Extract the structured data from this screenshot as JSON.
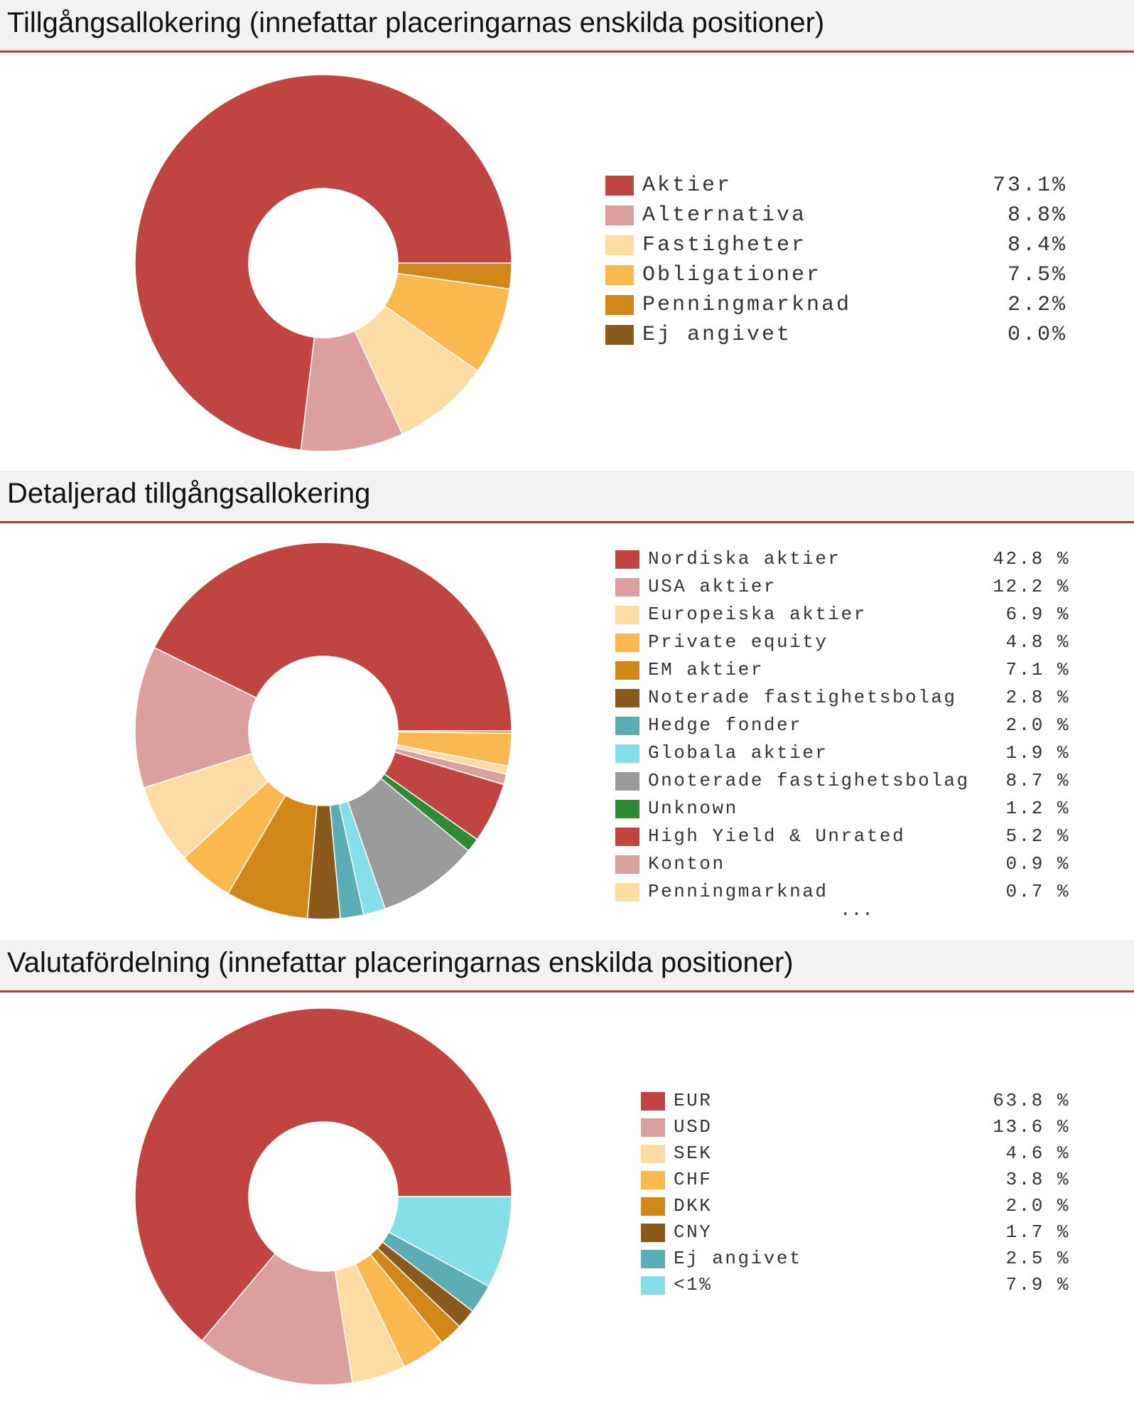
{
  "sections": [
    {
      "title": "Tillgångsallokering (innefattar placeringarnas enskilda positioner)"
    },
    {
      "title": "Detaljerad tillgångsallokering"
    },
    {
      "title": "Valutafördelning (innefattar placeringarnas enskilda positioner)"
    }
  ],
  "more_indicator": "...",
  "chart_data": [
    {
      "type": "pie",
      "title": "Tillgångsallokering (innefattar placeringarnas enskilda positioner)",
      "categories": [
        "Aktier",
        "Alternativa",
        "Fastigheter",
        "Obligationer",
        "Penningmarknad",
        "Ej angivet"
      ],
      "values": [
        73.1,
        8.8,
        8.4,
        7.5,
        2.2,
        0.0
      ],
      "labels": [
        "73.1%",
        "8.8%",
        "8.4%",
        "7.5%",
        "2.2%",
        "0.0%"
      ],
      "colors": [
        "#c0443f",
        "#dba09e",
        "#fddba3",
        "#fbb84f",
        "#d08717",
        "#8a5a1c"
      ],
      "donut": true,
      "legend": "right"
    },
    {
      "type": "pie",
      "title": "Detaljerad tillgångsallokering",
      "categories": [
        "Nordiska aktier",
        "USA aktier",
        "Europeiska aktier",
        "Private equity",
        "EM aktier",
        "Noterade fastighetsbolag",
        "Hedge fonder",
        "Globala aktier",
        "Onoterade fastighetsbolag",
        "Unknown",
        "High Yield & Unrated",
        "Konton",
        "Penningmarknad"
      ],
      "values": [
        42.8,
        12.2,
        6.9,
        4.8,
        7.1,
        2.8,
        2.0,
        1.9,
        8.7,
        1.2,
        5.2,
        0.9,
        0.7
      ],
      "labels": [
        "42.8 %",
        "12.2 %",
        "6.9 %",
        "4.8 %",
        "7.1 %",
        "2.8 %",
        "2.0 %",
        "1.9 %",
        "8.7 %",
        "1.2 %",
        "5.2 %",
        "0.9 %",
        "0.7 %"
      ],
      "extra_values": [
        2.8,
        0.2
      ],
      "extra_colors": [
        "#fbb84f",
        "#d08717"
      ],
      "colors": [
        "#c0443f",
        "#dba09e",
        "#fddba3",
        "#fbb84f",
        "#d08717",
        "#8a5a1c",
        "#5aadb5",
        "#84dfe8",
        "#9a9a9a",
        "#2e8b35",
        "#c0443f",
        "#dba09e",
        "#fddba3"
      ],
      "donut": true,
      "legend": "right"
    },
    {
      "type": "pie",
      "title": "Valutafördelning (innefattar placeringarnas enskilda positioner)",
      "categories": [
        "EUR",
        "USD",
        "SEK",
        "CHF",
        "DKK",
        "CNY",
        "Ej angivet",
        "<1%"
      ],
      "values": [
        63.8,
        13.6,
        4.6,
        3.8,
        2.0,
        1.7,
        2.5,
        7.9
      ],
      "labels": [
        "63.8 %",
        "13.6 %",
        "4.6 %",
        "3.8 %",
        "2.0 %",
        "1.7 %",
        "2.5 %",
        "7.9 %"
      ],
      "colors": [
        "#c0443f",
        "#dba09e",
        "#fddba3",
        "#fbb84f",
        "#d08717",
        "#8a5a1c",
        "#5aadb5",
        "#84dfe8"
      ],
      "donut": true,
      "legend": "right"
    }
  ]
}
